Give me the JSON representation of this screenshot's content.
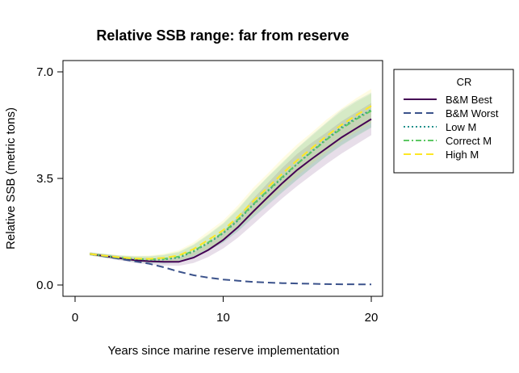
{
  "colors": {
    "bm_best": "#440154",
    "bm_worst": "#3b528b",
    "low_m": "#21908c",
    "correct_m": "#5dc863",
    "high_m": "#fde725"
  },
  "chart_data": {
    "type": "line",
    "title": "Relative SSB range: far from reserve",
    "xlabel": "Years since marine reserve implementation",
    "ylabel": "Relative SSB (metric tons)",
    "xlim": [
      0,
      20
    ],
    "ylim": [
      0,
      7
    ],
    "xticks": [
      0,
      10,
      20
    ],
    "yticks": [
      0.0,
      3.5,
      7.0
    ],
    "xtick_labels": [
      "0",
      "10",
      "20"
    ],
    "ytick_labels": [
      "0.0",
      "3.5",
      "7.0"
    ],
    "grid": false,
    "legend": {
      "title": "CR",
      "placement": "right"
    },
    "x": [
      1,
      2,
      3,
      4,
      5,
      6,
      7,
      8,
      9,
      10,
      11,
      12,
      13,
      14,
      15,
      16,
      17,
      18,
      19,
      20
    ],
    "series": [
      {
        "name": "B&M Best",
        "color": "#440154",
        "dash": "solid",
        "values": [
          1.02,
          0.95,
          0.88,
          0.82,
          0.78,
          0.76,
          0.76,
          0.9,
          1.15,
          1.48,
          1.9,
          2.4,
          2.88,
          3.35,
          3.78,
          4.15,
          4.5,
          4.85,
          5.15,
          5.45
        ],
        "band_lower": [
          0.97,
          0.89,
          0.81,
          0.73,
          0.68,
          0.64,
          0.63,
          0.72,
          0.92,
          1.2,
          1.56,
          1.98,
          2.42,
          2.85,
          3.25,
          3.62,
          3.98,
          4.32,
          4.62,
          4.92
        ],
        "band_upper": [
          1.07,
          1.01,
          0.95,
          0.9,
          0.88,
          0.88,
          0.9,
          1.08,
          1.38,
          1.76,
          2.24,
          2.82,
          3.34,
          3.85,
          4.31,
          4.68,
          5.02,
          5.38,
          5.68,
          5.98
        ]
      },
      {
        "name": "B&M Worst",
        "color": "#3b528b",
        "dash": "longdash",
        "values": [
          1.02,
          0.94,
          0.86,
          0.78,
          0.7,
          0.58,
          0.44,
          0.32,
          0.24,
          0.18,
          0.14,
          0.1,
          0.08,
          0.06,
          0.05,
          0.04,
          0.03,
          0.025,
          0.02,
          0.02
        ]
      },
      {
        "name": "Low M",
        "color": "#21908c",
        "dash": "dotted",
        "values": [
          1.02,
          0.96,
          0.9,
          0.85,
          0.83,
          0.84,
          0.9,
          1.1,
          1.38,
          1.7,
          2.12,
          2.62,
          3.08,
          3.52,
          3.98,
          4.4,
          4.8,
          5.18,
          5.48,
          5.75
        ],
        "band_lower": [
          0.97,
          0.9,
          0.83,
          0.76,
          0.72,
          0.7,
          0.73,
          0.89,
          1.12,
          1.39,
          1.76,
          2.2,
          2.62,
          3.04,
          3.46,
          3.86,
          4.25,
          4.6,
          4.9,
          5.18
        ],
        "band_upper": [
          1.07,
          1.02,
          0.97,
          0.94,
          0.94,
          0.98,
          1.07,
          1.31,
          1.64,
          2.01,
          2.48,
          3.04,
          3.54,
          4.0,
          4.5,
          4.94,
          5.35,
          5.76,
          6.06,
          6.32
        ]
      },
      {
        "name": "Correct M",
        "color": "#5dc863",
        "dash": "dotdash",
        "values": [
          1.02,
          0.96,
          0.9,
          0.86,
          0.84,
          0.86,
          0.93,
          1.12,
          1.4,
          1.72,
          2.15,
          2.64,
          3.1,
          3.55,
          3.98,
          4.38,
          4.78,
          5.14,
          5.45,
          5.72
        ],
        "band_lower": [
          0.97,
          0.9,
          0.83,
          0.77,
          0.73,
          0.72,
          0.76,
          0.9,
          1.13,
          1.4,
          1.78,
          2.22,
          2.64,
          3.06,
          3.47,
          3.86,
          4.24,
          4.58,
          4.88,
          5.16
        ],
        "band_upper": [
          1.07,
          1.02,
          0.97,
          0.95,
          0.95,
          1.0,
          1.1,
          1.34,
          1.67,
          2.04,
          2.52,
          3.06,
          3.56,
          4.04,
          4.49,
          4.9,
          5.32,
          5.7,
          6.02,
          6.28
        ]
      },
      {
        "name": "High M",
        "color": "#fde725",
        "dash": "longdash",
        "values": [
          1.02,
          0.96,
          0.91,
          0.87,
          0.86,
          0.89,
          0.97,
          1.18,
          1.48,
          1.8,
          2.24,
          2.74,
          3.2,
          3.66,
          4.1,
          4.5,
          4.9,
          5.26,
          5.58,
          5.88
        ],
        "band_lower": [
          0.97,
          0.9,
          0.84,
          0.78,
          0.75,
          0.75,
          0.8,
          0.96,
          1.2,
          1.48,
          1.86,
          2.3,
          2.74,
          3.16,
          3.58,
          3.98,
          4.36,
          4.72,
          5.02,
          5.32
        ],
        "band_upper": [
          1.07,
          1.02,
          0.98,
          0.96,
          0.97,
          1.03,
          1.14,
          1.4,
          1.76,
          2.12,
          2.62,
          3.18,
          3.66,
          4.16,
          4.62,
          5.02,
          5.44,
          5.8,
          6.14,
          6.44
        ]
      }
    ]
  }
}
